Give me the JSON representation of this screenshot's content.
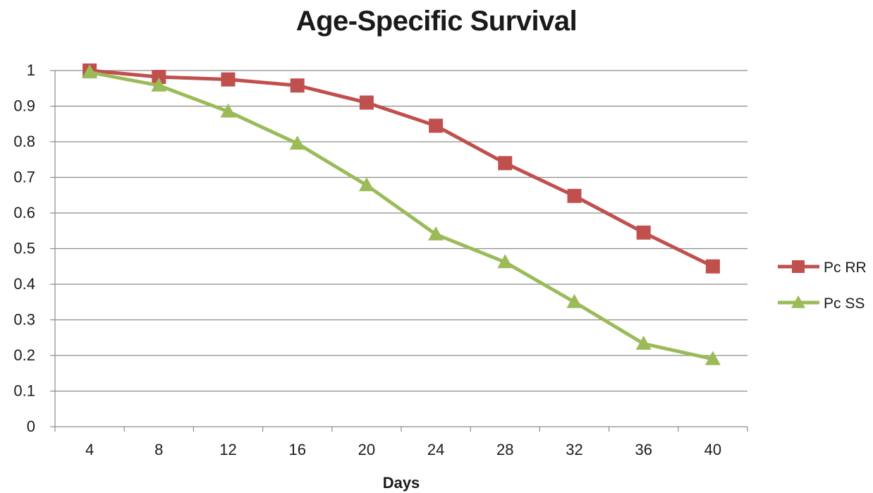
{
  "chart_data": {
    "type": "line",
    "title": "Age-Specific Survival",
    "xlabel": "Days",
    "ylabel": "",
    "categories": [
      "4",
      "8",
      "12",
      "16",
      "20",
      "24",
      "28",
      "32",
      "36",
      "40"
    ],
    "ylim": [
      0,
      1
    ],
    "yticks": [
      "0",
      "0.1",
      "0.2",
      "0.3",
      "0.4",
      "0.5",
      "0.6",
      "0.7",
      "0.8",
      "0.9",
      "1"
    ],
    "grid": true,
    "legend_position": "right",
    "series": [
      {
        "name": "Pc RR",
        "color": "#c0504d",
        "marker": "square",
        "values": [
          1.0,
          0.982,
          0.975,
          0.958,
          0.91,
          0.845,
          0.74,
          0.648,
          0.545,
          0.45
        ]
      },
      {
        "name": "Pc SS",
        "color": "#9bbb59",
        "marker": "triangle",
        "values": [
          0.995,
          0.958,
          0.885,
          0.795,
          0.678,
          0.54,
          0.462,
          0.35,
          0.233,
          0.19
        ]
      }
    ]
  }
}
